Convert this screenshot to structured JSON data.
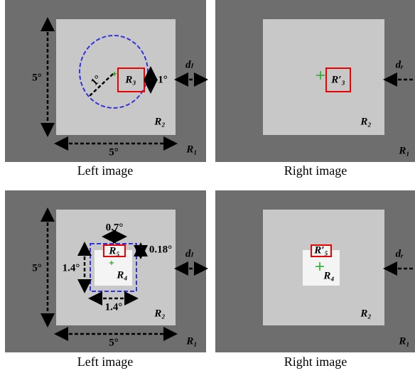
{
  "panels": [
    {
      "caption": "Left image",
      "height_label": "5°",
      "width_label": "5°",
      "radius_label": "1°",
      "target": "R₃",
      "target_size": "1°",
      "disparity": "dₗ",
      "inner": "R₂",
      "outer": "R₁"
    },
    {
      "caption": "Right image",
      "target": "R′₃",
      "disparity": "dᵣ",
      "inner": "R₂",
      "outer": "R₁"
    },
    {
      "caption": "Left image",
      "height_label": "5°",
      "width_label": "5°",
      "top_width": "0.7°",
      "top_height": "0.18°",
      "box_height": "1.4°",
      "box_width": "1.4°",
      "target_top": "R₅",
      "target": "R₄",
      "disparity": "dₗ",
      "inner": "R₂",
      "outer": "R₁"
    },
    {
      "caption": "Right image",
      "target_top": "R′₅",
      "target": "R₄",
      "disparity": "dᵣ",
      "inner": "R₂",
      "outer": "R₁"
    }
  ]
}
